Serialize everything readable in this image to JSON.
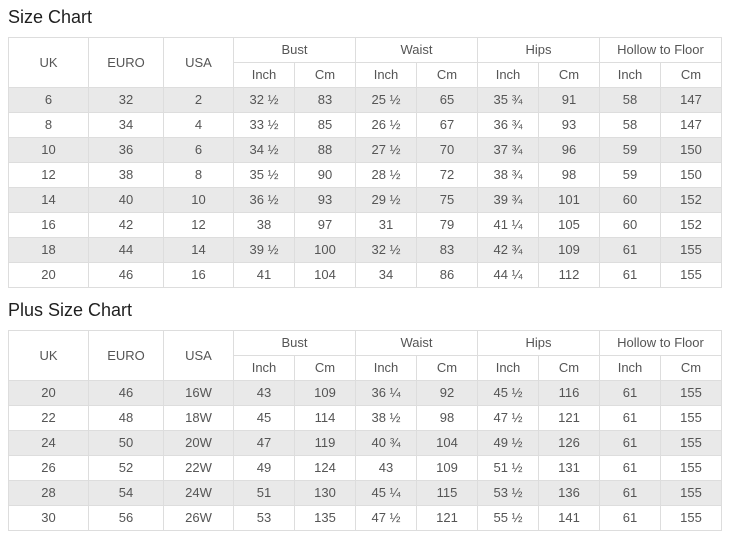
{
  "theme": {
    "stripe_row_color": "#e9e9e9",
    "border_color": "#dddddd",
    "table_text_color": "#555555",
    "title_color": "#1f1f1f"
  },
  "chart_data": [
    {
      "type": "table",
      "title": "Size Chart",
      "header": {
        "row_headers": [
          "UK",
          "EURO",
          "USA"
        ],
        "groups": [
          "Bust",
          "Waist",
          "Hips",
          "Hollow to Floor"
        ],
        "units": [
          "Inch",
          "Cm"
        ]
      },
      "rows": [
        [
          "6",
          "32",
          "2",
          "32 ½",
          "83",
          "25 ½",
          "65",
          "35 ¾",
          "91",
          "58",
          "147"
        ],
        [
          "8",
          "34",
          "4",
          "33 ½",
          "85",
          "26 ½",
          "67",
          "36 ¾",
          "93",
          "58",
          "147"
        ],
        [
          "10",
          "36",
          "6",
          "34 ½",
          "88",
          "27 ½",
          "70",
          "37 ¾",
          "96",
          "59",
          "150"
        ],
        [
          "12",
          "38",
          "8",
          "35 ½",
          "90",
          "28 ½",
          "72",
          "38 ¾",
          "98",
          "59",
          "150"
        ],
        [
          "14",
          "40",
          "10",
          "36 ½",
          "93",
          "29 ½",
          "75",
          "39 ¾",
          "101",
          "60",
          "152"
        ],
        [
          "16",
          "42",
          "12",
          "38",
          "97",
          "31",
          "79",
          "41 ¼",
          "105",
          "60",
          "152"
        ],
        [
          "18",
          "44",
          "14",
          "39 ½",
          "100",
          "32 ½",
          "83",
          "42 ¾",
          "109",
          "61",
          "155"
        ],
        [
          "20",
          "46",
          "16",
          "41",
          "104",
          "34",
          "86",
          "44 ¼",
          "112",
          "61",
          "155"
        ]
      ]
    },
    {
      "type": "table",
      "title": "Plus Size Chart",
      "header": {
        "row_headers": [
          "UK",
          "EURO",
          "USA"
        ],
        "groups": [
          "Bust",
          "Waist",
          "Hips",
          "Hollow to Floor"
        ],
        "units": [
          "Inch",
          "Cm"
        ]
      },
      "rows": [
        [
          "20",
          "46",
          "16W",
          "43",
          "109",
          "36 ¼",
          "92",
          "45 ½",
          "116",
          "61",
          "155"
        ],
        [
          "22",
          "48",
          "18W",
          "45",
          "114",
          "38 ½",
          "98",
          "47 ½",
          "121",
          "61",
          "155"
        ],
        [
          "24",
          "50",
          "20W",
          "47",
          "119",
          "40 ¾",
          "104",
          "49 ½",
          "126",
          "61",
          "155"
        ],
        [
          "26",
          "52",
          "22W",
          "49",
          "124",
          "43",
          "109",
          "51 ½",
          "131",
          "61",
          "155"
        ],
        [
          "28",
          "54",
          "24W",
          "51",
          "130",
          "45 ¼",
          "115",
          "53 ½",
          "136",
          "61",
          "155"
        ],
        [
          "30",
          "56",
          "26W",
          "53",
          "135",
          "47 ½",
          "121",
          "55 ½",
          "141",
          "61",
          "155"
        ]
      ]
    }
  ]
}
